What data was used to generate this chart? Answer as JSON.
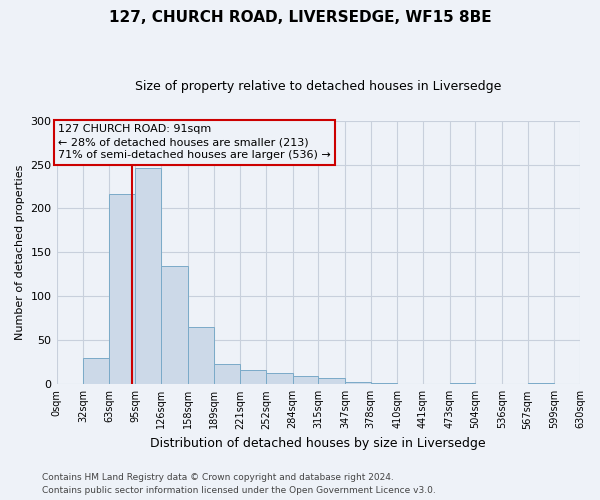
{
  "title": "127, CHURCH ROAD, LIVERSEDGE, WF15 8BE",
  "subtitle": "Size of property relative to detached houses in Liversedge",
  "xlabel": "Distribution of detached houses by size in Liversedge",
  "ylabel": "Number of detached properties",
  "bar_edges": [
    0,
    32,
    63,
    95,
    126,
    158,
    189,
    221,
    252,
    284,
    315,
    347,
    378,
    410,
    441,
    473,
    504,
    536,
    567,
    599,
    630
  ],
  "bar_heights": [
    0,
    30,
    216,
    246,
    135,
    65,
    23,
    16,
    13,
    10,
    7,
    3,
    1,
    0,
    0,
    1,
    0,
    0,
    1,
    0
  ],
  "bar_color": "#ccd9e8",
  "bar_edge_color": "#7aaac8",
  "vline_x": 91,
  "vline_color": "#cc0000",
  "ylim": [
    0,
    300
  ],
  "yticks": [
    0,
    50,
    100,
    150,
    200,
    250,
    300
  ],
  "ann_line1": "127 CHURCH ROAD: 91sqm",
  "ann_line2": "← 28% of detached houses are smaller (213)",
  "ann_line3": "71% of semi-detached houses are larger (536) →",
  "annotation_box_color": "#cc0000",
  "footer_line1": "Contains HM Land Registry data © Crown copyright and database right 2024.",
  "footer_line2": "Contains public sector information licensed under the Open Government Licence v3.0.",
  "bg_color": "#eef2f8",
  "grid_color": "#c8d0dc",
  "title_fontsize": 11,
  "subtitle_fontsize": 9,
  "ylabel_fontsize": 8,
  "xlabel_fontsize": 9,
  "tick_fontsize": 7,
  "ann_fontsize": 8,
  "footer_fontsize": 6.5
}
